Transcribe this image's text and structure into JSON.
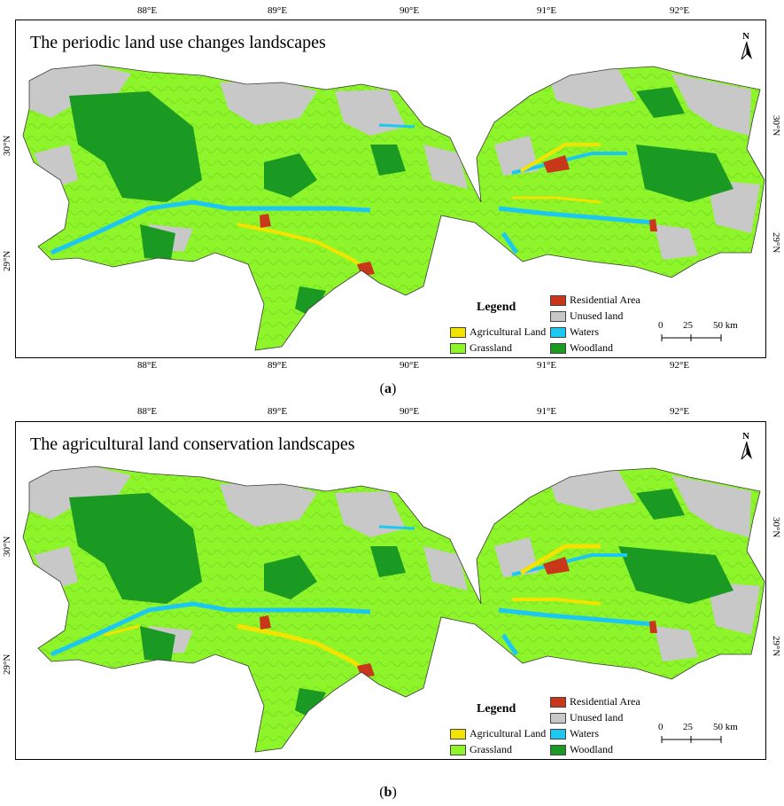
{
  "colors": {
    "agricultural": "#f2e400",
    "grassland": "#8ef52a",
    "residential": "#c8371a",
    "unused": "#c8c8c8",
    "waters": "#1cc8f2",
    "woodland": "#1a9a22"
  },
  "axis": {
    "top_ticks": [
      "88°E",
      "89°E",
      "90°E",
      "91°E",
      "92°E"
    ],
    "bottom_ticks": [
      "88°E",
      "89°E",
      "90°E",
      "91°E",
      "92°E"
    ],
    "left_ticks": [
      "30°N",
      "29°N"
    ],
    "right_ticks": [
      "30°N",
      "29°N"
    ]
  },
  "legend": {
    "title": "Legend",
    "items": [
      {
        "label": "Residential Area",
        "color_key": "residential"
      },
      {
        "label": "Unused land",
        "color_key": "unused"
      },
      {
        "label": "Agricultural Land",
        "color_key": "agricultural"
      },
      {
        "label": "Waters",
        "color_key": "waters"
      },
      {
        "label": "Grassland",
        "color_key": "grassland"
      },
      {
        "label": "Woodland",
        "color_key": "woodland"
      }
    ]
  },
  "north_arrow": {
    "label": "N"
  },
  "scale_bar": {
    "labels": [
      "0",
      "25",
      "50 km"
    ]
  },
  "panels": [
    {
      "title": "The periodic land use changes landscapes",
      "caption_letter": "a"
    },
    {
      "title": "The agricultural land conservation landscapes",
      "caption_letter": "b"
    }
  ]
}
